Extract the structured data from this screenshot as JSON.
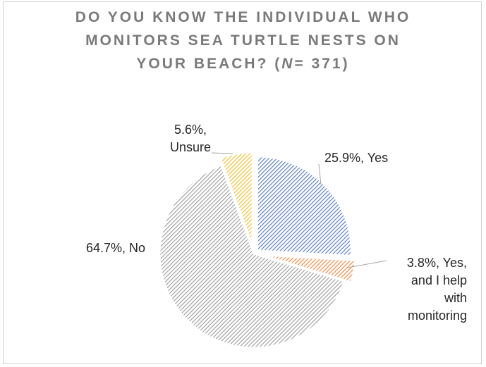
{
  "title": {
    "line1": "DO YOU KNOW THE INDIVIDUAL WHO",
    "line2": "MONITORS SEA TURTLE NESTS ON",
    "line3_prefix": "YOUR BEACH? (",
    "line3_n": "N",
    "line3_suffix": "= 371)"
  },
  "colors": {
    "yes": "#5b7fc9",
    "yes_help": "#ee8a45",
    "no": "#9a9a9a",
    "unsure": "#f5c032"
  },
  "chart_data": {
    "type": "pie",
    "title": "DO YOU KNOW THE INDIVIDUAL WHO MONITORS SEA TURTLE NESTS ON YOUR BEACH? (N= 371)",
    "slices": [
      {
        "category": "Yes",
        "value": 25.9,
        "label_lines": [
          "25.9%, Yes"
        ]
      },
      {
        "category": "Yes, and I help with monitoring",
        "value": 3.8,
        "label_lines": [
          "3.8%, Yes,",
          "and I help",
          "with",
          "monitoring"
        ]
      },
      {
        "category": "No",
        "value": 64.7,
        "label_lines": [
          "64.7%, No"
        ]
      },
      {
        "category": "Unsure",
        "value": 5.6,
        "label_lines": [
          "5.6%,",
          "Unsure"
        ]
      }
    ]
  }
}
